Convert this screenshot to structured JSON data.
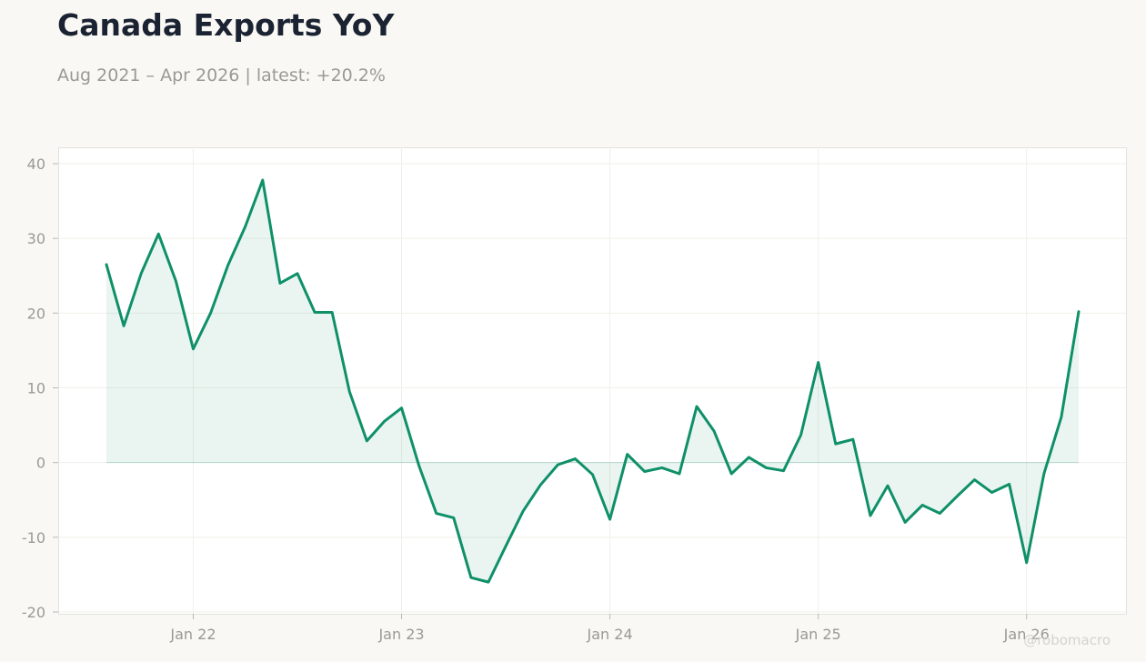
{
  "title": "Canada Exports YoY",
  "subtitle": "Aug 2021 – Apr 2026 | latest: +20.2%",
  "watermark": "@robomacro",
  "colors": {
    "background": "#f9f8f4",
    "plot_background": "#ffffff",
    "line": "#0f9068",
    "area_fill": "#0f9068",
    "title": "#1b2333",
    "muted_text": "#9a9a94"
  },
  "chart_data": {
    "type": "area",
    "title": "Canada Exports YoY",
    "subtitle": "Aug 2021 – Apr 2026 | latest: +20.2%",
    "xlabel": "",
    "ylabel": "",
    "xlim": [
      "2021-07",
      "2026-06"
    ],
    "ylim": [
      -20,
      42
    ],
    "grid": true,
    "legend": "none",
    "x_ticks": [
      {
        "date": "2022-01",
        "label": "Jan 22"
      },
      {
        "date": "2023-01",
        "label": "Jan 23"
      },
      {
        "date": "2024-01",
        "label": "Jan 24"
      },
      {
        "date": "2025-01",
        "label": "Jan 25"
      },
      {
        "date": "2026-01",
        "label": "Jan 26"
      }
    ],
    "y_ticks": [
      {
        "value": 40,
        "label": "40"
      },
      {
        "value": 30,
        "label": "30"
      },
      {
        "value": 20,
        "label": "20"
      },
      {
        "value": 10,
        "label": "10"
      },
      {
        "value": 0,
        "label": "0"
      },
      {
        "value": -10,
        "label": "-10"
      },
      {
        "value": -20,
        "label": "-20"
      }
    ],
    "series": [
      {
        "x": [
          "2021-08",
          "2021-09",
          "2021-10",
          "2021-11",
          "2021-12",
          "2022-01",
          "2022-02",
          "2022-03",
          "2022-04",
          "2022-05",
          "2022-06",
          "2022-07",
          "2022-08",
          "2022-09",
          "2022-10",
          "2022-11",
          "2022-12",
          "2023-01",
          "2023-02",
          "2023-03",
          "2023-04",
          "2023-05",
          "2023-06",
          "2023-07",
          "2023-08",
          "2023-09",
          "2023-10",
          "2023-11",
          "2023-12",
          "2024-01",
          "2024-02",
          "2024-03",
          "2024-04",
          "2024-05",
          "2024-06",
          "2024-07",
          "2024-08",
          "2024-09",
          "2024-10",
          "2024-11",
          "2024-12",
          "2025-01",
          "2025-02",
          "2025-03",
          "2025-04",
          "2025-05",
          "2025-06",
          "2025-07",
          "2025-08",
          "2025-09",
          "2025-10",
          "2025-11",
          "2025-12",
          "2026-01",
          "2026-02",
          "2026-03",
          "2026-04"
        ],
        "values": [
          26.5,
          18.3,
          25.3,
          30.6,
          24.3,
          15.2,
          20.0,
          26.4,
          31.6,
          37.8,
          24.0,
          25.3,
          20.1,
          20.1,
          9.5,
          2.9,
          5.5,
          7.3,
          -0.4,
          -6.8,
          -7.4,
          -15.4,
          -16.0,
          -11.2,
          -6.5,
          -3.0,
          -0.3,
          0.5,
          -1.6,
          -7.6,
          1.1,
          -1.2,
          -0.7,
          -1.5,
          7.5,
          4.2,
          -1.5,
          0.7,
          -0.7,
          -1.1,
          3.7,
          13.4,
          2.5,
          3.1,
          -7.1,
          -3.1,
          -8.0,
          -5.7,
          -6.8,
          -4.5,
          -2.3,
          -4.0,
          -2.9,
          -13.4,
          -1.5,
          6.1,
          20.2
        ]
      }
    ]
  }
}
